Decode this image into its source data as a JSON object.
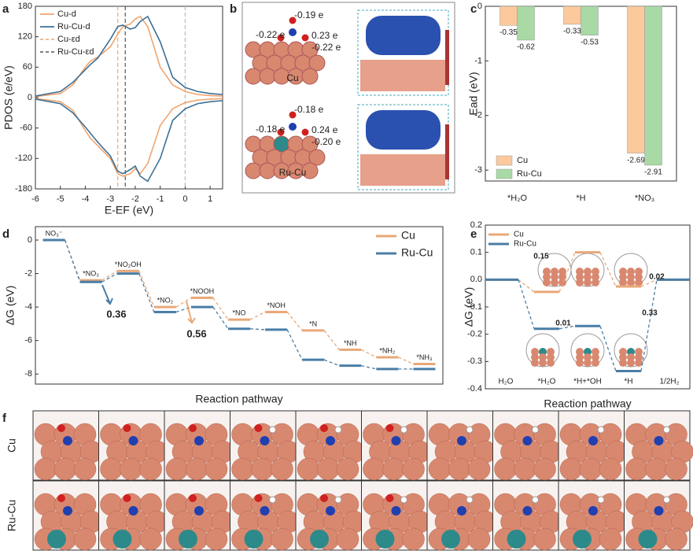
{
  "chart_data": [
    {
      "type": "line",
      "label": "a",
      "xlabel": "E-EF (eV)",
      "ylabel": "PDOS (e/eV)",
      "x": [
        -6,
        -5,
        -4.5,
        -4,
        -3.8,
        -3.5,
        -3,
        -2.7,
        -2.5,
        -2.2,
        -2,
        -1.8,
        -1.5,
        -1,
        -0.5,
        0,
        0.5,
        1,
        1.5
      ],
      "xlim": [
        -6,
        1.5
      ],
      "xticks": [
        -6,
        -5,
        -4,
        -3,
        -2,
        -1,
        0,
        1
      ],
      "ylim": [
        -180,
        180
      ],
      "yticks": [
        -180,
        -120,
        -60,
        0,
        60,
        120,
        180
      ],
      "series": [
        {
          "name": "Cu-d",
          "color": "#f0a56e",
          "values": [
            2,
            8,
            25,
            60,
            72,
            80,
            100,
            125,
            140,
            145,
            155,
            160,
            140,
            60,
            25,
            12,
            6,
            4,
            3
          ],
          "down_values": [
            -2,
            -8,
            -25,
            -65,
            -80,
            -95,
            -120,
            -150,
            -155,
            -150,
            -140,
            -150,
            -130,
            -55,
            -22,
            -10,
            -5,
            -3,
            -2
          ]
        },
        {
          "name": "Ru-Cu-d",
          "color": "#3d6f96",
          "values": [
            3,
            12,
            30,
            55,
            65,
            78,
            115,
            140,
            143,
            135,
            138,
            150,
            160,
            110,
            40,
            20,
            12,
            8,
            6
          ],
          "down_values": [
            -3,
            -12,
            -30,
            -58,
            -70,
            -88,
            -115,
            -145,
            -150,
            -142,
            -135,
            -155,
            -165,
            -120,
            -45,
            -22,
            -12,
            -8,
            -6
          ]
        }
      ],
      "vlines": [
        {
          "name": "Cu-εd",
          "x": -2.7,
          "color": "#f0a56e"
        },
        {
          "name": "Ru-Cu-εd",
          "x": -2.4,
          "color": "#555555"
        },
        {
          "x": 0,
          "color": "#bbbbbb"
        }
      ]
    },
    {
      "type": "bar",
      "label": "c",
      "ylabel": "Ead (eV)",
      "categories": [
        "*H₂O",
        "*H",
        "*NO₃"
      ],
      "ylim": [
        -3.2,
        0
      ],
      "yticks": [
        -3,
        -2,
        -1,
        0
      ],
      "legend": "lower left",
      "series": [
        {
          "name": "Cu",
          "color": "#fbc99c",
          "values": [
            -0.35,
            -0.33,
            -2.69
          ]
        },
        {
          "name": "Ru-Cu",
          "color": "#a9d9a4",
          "values": [
            -0.62,
            -0.53,
            -2.91
          ]
        }
      ]
    },
    {
      "type": "levels",
      "label": "d",
      "xlabel": "Reaction pathway",
      "ylabel": "ΔG (eV)",
      "categories": [
        "NO₃⁻",
        "*NO₃",
        "*NO₂OH",
        "*NO₂",
        "*NOOH",
        "*NO",
        "*NOH",
        "*N",
        "*NH",
        "*NH₂",
        "*NH₃"
      ],
      "ylim": [
        -8.6,
        0.8
      ],
      "yticks": [
        0,
        -2,
        -4,
        -6,
        -8
      ],
      "legend": "upper right",
      "series": [
        {
          "name": "Cu",
          "color": "#e8a878",
          "values": [
            0,
            -2.4,
            -1.85,
            -4.0,
            -3.45,
            -4.75,
            -4.3,
            -5.4,
            -6.55,
            -7.0,
            -7.4
          ]
        },
        {
          "name": "Ru-Cu",
          "color": "#4a7ea6",
          "values": [
            0,
            -2.5,
            -2.0,
            -4.3,
            -4.0,
            -5.3,
            -5.35,
            -7.15,
            -7.5,
            -7.7,
            -7.7
          ]
        }
      ],
      "annotations": [
        {
          "text": "0.36",
          "color": "#4a7ea6"
        },
        {
          "text": "0.56",
          "color": "#e8a878"
        }
      ]
    },
    {
      "type": "levels",
      "label": "e",
      "xlabel": "Reaction pathway",
      "ylabel": "ΔG (eV)",
      "categories": [
        "H₂O",
        "*H₂O",
        "*H+*OH",
        "*H",
        "1/2H₂"
      ],
      "ylim": [
        -0.4,
        0.2
      ],
      "yticks": [
        -0.4,
        -0.3,
        -0.2,
        -0.1,
        {
          "value": 0,
          "label": "0.0"
        },
        0.1,
        0.2
      ],
      "legend": "upper left",
      "series": [
        {
          "name": "Cu",
          "color": "#e8a878",
          "values": [
            0,
            -0.045,
            0.1,
            -0.025,
            0
          ]
        },
        {
          "name": "Ru-Cu",
          "color": "#4a7ea6",
          "values": [
            0,
            -0.18,
            -0.17,
            -0.335,
            0
          ]
        }
      ],
      "annotations": [
        {
          "text": "0.15",
          "color": "#e05050"
        },
        {
          "text": "0.02",
          "color": "#e05050"
        },
        {
          "text": "0.01",
          "color": "#e05050"
        },
        {
          "text": "0.33",
          "color": "#e05050"
        }
      ]
    }
  ],
  "panels": {
    "b": {
      "label": "b",
      "top": {
        "name": "Cu",
        "charges": [
          "-0.19 e",
          "-0.22 e",
          "0.23 e",
          "-0.22 e"
        ]
      },
      "bottom": {
        "name": "Ru-Cu",
        "charges": [
          "-0.18 e",
          "-0.18 e",
          "0.24 e",
          "-0.20 e"
        ]
      }
    },
    "f": {
      "label": "f",
      "rows": [
        "Cu",
        "Ru-Cu"
      ]
    }
  }
}
